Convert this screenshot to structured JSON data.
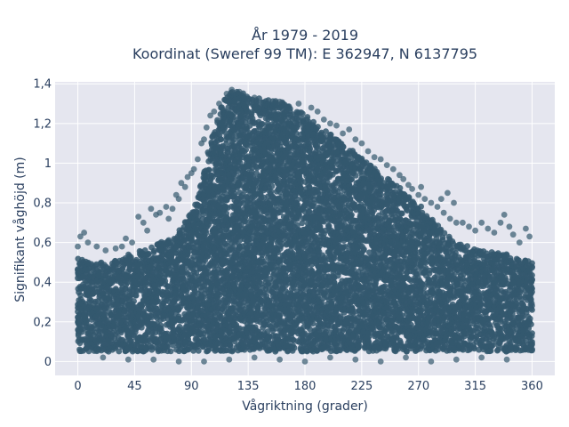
{
  "chart_data": {
    "type": "scatter",
    "title_lines": [
      "År 1979 - 2019",
      "Koordinat (Sweref 99 TM): E 362947, N 6137795"
    ],
    "xlabel": "Vågriktning (grader)",
    "ylabel": "Signifikant våghöjd (m)",
    "xlim": [
      -18,
      378
    ],
    "ylim": [
      -0.07,
      1.41
    ],
    "x_ticks": [
      0,
      45,
      90,
      135,
      180,
      225,
      270,
      315,
      360
    ],
    "x_tick_labels": [
      "0",
      "45",
      "90",
      "135",
      "180",
      "225",
      "270",
      "315",
      "360"
    ],
    "y_ticks": [
      0,
      0.2,
      0.4,
      0.6,
      0.8,
      1.0,
      1.2,
      1.4
    ],
    "y_tick_labels": [
      "0",
      "0,2",
      "0,4",
      "0,6",
      "0,8",
      "1",
      "1,2",
      "1,4"
    ],
    "marker_color": "#34586e",
    "background_color": "#e5e6ef",
    "grid": true,
    "series": [
      {
        "envelope": {
          "x": [
            0,
            10,
            20,
            30,
            40,
            50,
            60,
            65,
            75,
            85,
            95,
            100,
            105,
            110,
            115,
            120,
            125,
            130,
            135,
            140,
            150,
            160,
            170,
            180,
            190,
            200,
            210,
            220,
            230,
            240,
            250,
            260,
            270,
            280,
            290,
            300,
            310,
            320,
            330,
            340,
            350,
            360
          ],
          "y_upper": [
            0.52,
            0.5,
            0.5,
            0.52,
            0.54,
            0.56,
            0.58,
            0.6,
            0.62,
            0.7,
            0.82,
            0.96,
            1.1,
            1.22,
            1.3,
            1.35,
            1.37,
            1.36,
            1.34,
            1.33,
            1.32,
            1.31,
            1.3,
            1.25,
            1.2,
            1.15,
            1.1,
            1.05,
            1.0,
            0.95,
            0.9,
            0.85,
            0.8,
            0.72,
            0.66,
            0.6,
            0.58,
            0.56,
            0.55,
            0.54,
            0.52,
            0.5
          ],
          "y_lower": [
            0.05,
            0.05,
            0.05,
            0.05,
            0.05,
            0.05,
            0.05,
            0.05,
            0.05,
            0.05,
            0.05,
            0.05,
            0.05,
            0.05,
            0.05,
            0.05,
            0.05,
            0.05,
            0.05,
            0.05,
            0.05,
            0.05,
            0.05,
            0.05,
            0.05,
            0.05,
            0.05,
            0.05,
            0.05,
            0.05,
            0.05,
            0.05,
            0.05,
            0.05,
            0.05,
            0.05,
            0.05,
            0.05,
            0.05,
            0.05,
            0.05,
            0.05
          ]
        },
        "outliers": [
          [
            0,
            0.58
          ],
          [
            2,
            0.63
          ],
          [
            5,
            0.65
          ],
          [
            8,
            0.6
          ],
          [
            15,
            0.58
          ],
          [
            22,
            0.56
          ],
          [
            30,
            0.57
          ],
          [
            35,
            0.58
          ],
          [
            38,
            0.62
          ],
          [
            43,
            0.6
          ],
          [
            48,
            0.73
          ],
          [
            52,
            0.7
          ],
          [
            55,
            0.66
          ],
          [
            58,
            0.77
          ],
          [
            62,
            0.74
          ],
          [
            65,
            0.75
          ],
          [
            70,
            0.78
          ],
          [
            72,
            0.72
          ],
          [
            75,
            0.77
          ],
          [
            78,
            0.84
          ],
          [
            80,
            0.82
          ],
          [
            82,
            0.9
          ],
          [
            85,
            0.88
          ],
          [
            87,
            0.93
          ],
          [
            90,
            0.95
          ],
          [
            92,
            0.97
          ],
          [
            95,
            1.02
          ],
          [
            98,
            1.1
          ],
          [
            100,
            1.12
          ],
          [
            102,
            1.18
          ],
          [
            105,
            1.24
          ],
          [
            108,
            1.26
          ],
          [
            112,
            1.3
          ],
          [
            118,
            1.35
          ],
          [
            122,
            1.37
          ],
          [
            128,
            1.36
          ],
          [
            140,
            1.33
          ],
          [
            160,
            1.31
          ],
          [
            175,
            1.3
          ],
          [
            185,
            1.28
          ],
          [
            190,
            1.26
          ],
          [
            195,
            1.22
          ],
          [
            200,
            1.2
          ],
          [
            205,
            1.19
          ],
          [
            210,
            1.15
          ],
          [
            215,
            1.17
          ],
          [
            220,
            1.12
          ],
          [
            225,
            1.1
          ],
          [
            230,
            1.06
          ],
          [
            235,
            1.03
          ],
          [
            240,
            1.02
          ],
          [
            245,
            0.99
          ],
          [
            250,
            0.97
          ],
          [
            255,
            0.94
          ],
          [
            258,
            0.92
          ],
          [
            262,
            0.89
          ],
          [
            265,
            0.87
          ],
          [
            270,
            0.84
          ],
          [
            272,
            0.88
          ],
          [
            275,
            0.82
          ],
          [
            280,
            0.8
          ],
          [
            285,
            0.78
          ],
          [
            288,
            0.82
          ],
          [
            290,
            0.75
          ],
          [
            293,
            0.85
          ],
          [
            295,
            0.72
          ],
          [
            298,
            0.8
          ],
          [
            300,
            0.7
          ],
          [
            305,
            0.7
          ],
          [
            310,
            0.68
          ],
          [
            315,
            0.66
          ],
          [
            320,
            0.7
          ],
          [
            325,
            0.67
          ],
          [
            330,
            0.65
          ],
          [
            335,
            0.7
          ],
          [
            338,
            0.74
          ],
          [
            342,
            0.68
          ],
          [
            345,
            0.64
          ],
          [
            350,
            0.6
          ],
          [
            355,
            0.67
          ],
          [
            358,
            0.63
          ],
          [
            20,
            0.02
          ],
          [
            40,
            0.01
          ],
          [
            60,
            0.01
          ],
          [
            80,
            0.0
          ],
          [
            100,
            0.0
          ],
          [
            120,
            0.01
          ],
          [
            140,
            0.02
          ],
          [
            160,
            0.01
          ],
          [
            180,
            0.0
          ],
          [
            200,
            0.02
          ],
          [
            220,
            0.01
          ],
          [
            240,
            0.0
          ],
          [
            260,
            0.02
          ],
          [
            280,
            0.0
          ],
          [
            300,
            0.01
          ],
          [
            320,
            0.02
          ],
          [
            340,
            0.01
          ]
        ]
      }
    ]
  }
}
